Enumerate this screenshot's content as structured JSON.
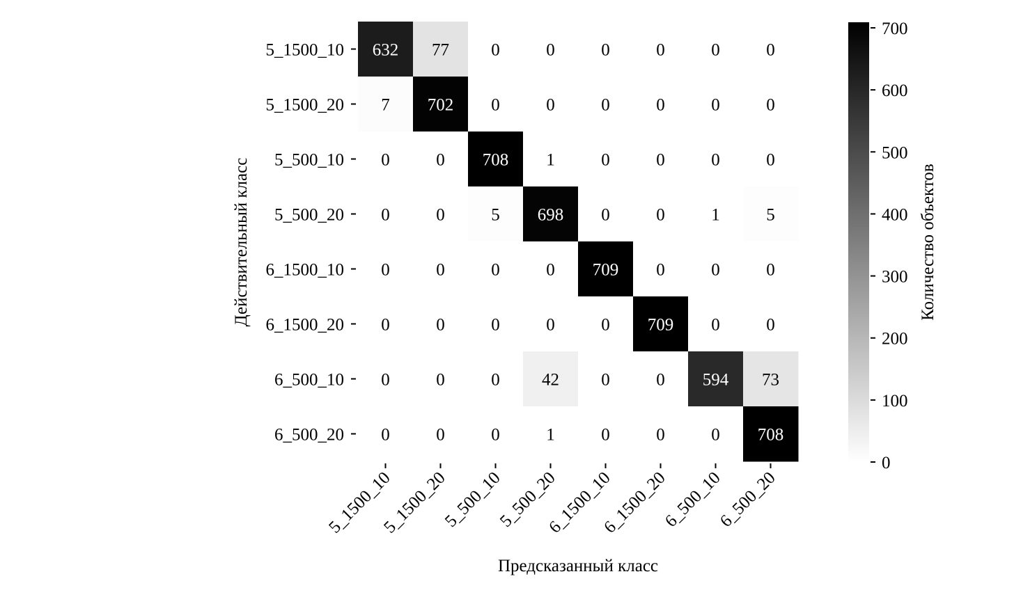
{
  "chart_data": {
    "type": "heatmap",
    "title": "",
    "xlabel": "Предсказанный класс",
    "ylabel": "Действительный класс",
    "x_categories": [
      "5_1500_10",
      "5_1500_20",
      "5_500_10",
      "5_500_20",
      "6_1500_10",
      "6_1500_20",
      "6_500_10",
      "6_500_20"
    ],
    "y_categories": [
      "5_1500_10",
      "5_1500_20",
      "5_500_10",
      "5_500_20",
      "6_1500_10",
      "6_1500_20",
      "6_500_10",
      "6_500_20"
    ],
    "values": [
      [
        632,
        77,
        0,
        0,
        0,
        0,
        0,
        0
      ],
      [
        7,
        702,
        0,
        0,
        0,
        0,
        0,
        0
      ],
      [
        0,
        0,
        708,
        1,
        0,
        0,
        0,
        0
      ],
      [
        0,
        0,
        5,
        698,
        0,
        0,
        1,
        5
      ],
      [
        0,
        0,
        0,
        0,
        709,
        0,
        0,
        0
      ],
      [
        0,
        0,
        0,
        0,
        0,
        709,
        0,
        0
      ],
      [
        0,
        0,
        0,
        42,
        0,
        0,
        594,
        73
      ],
      [
        0,
        0,
        0,
        1,
        0,
        0,
        0,
        708
      ]
    ],
    "colorbar": {
      "label": "Количество объектов",
      "range": [
        0,
        709
      ],
      "ticks": [
        0,
        100,
        200,
        300,
        400,
        500,
        600,
        700
      ],
      "colormap": "white-to-black"
    },
    "colors": {
      "low": "#ffffff",
      "high": "#000000",
      "text_on_dark": "#ffffff",
      "text_on_light": "#000000"
    }
  }
}
